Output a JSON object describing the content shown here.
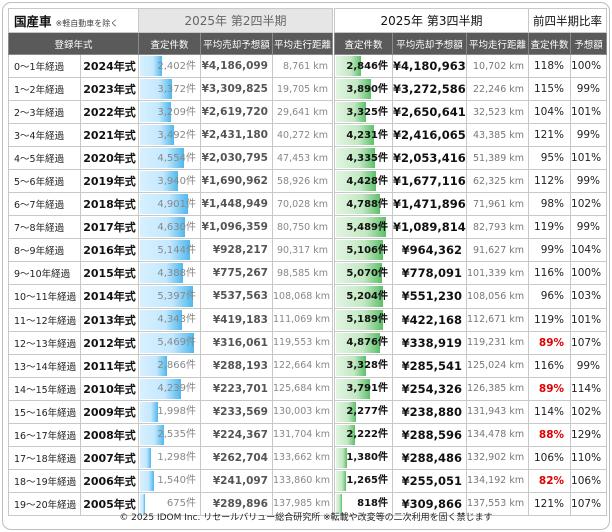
{
  "title": "国産車",
  "title_note": "※軽自動車を除く",
  "q2_label": "2025年 第2四半期",
  "q3_label": "2025年 第3四半期",
  "ratio_label": "前四半期比率",
  "columns": {
    "reg_year": "登録年式",
    "count": "査定件数",
    "avg_price": "平均売却予想額",
    "avg_distance": "平均走行距離",
    "count_ratio": "査定件数",
    "price_ratio": "予想額"
  },
  "colors": {
    "q2_bar": "#4fb8ec",
    "q3_bar": "#5cc06a",
    "alert": "#e00000",
    "header_bg": "#5a5a5a"
  },
  "rows": [
    {
      "age": "0～1年経過",
      "year": "2024年式",
      "q2_count": "2,402件",
      "q2_count_value": 2402,
      "q2_price": "¥4,186,099",
      "q2_dist": "8,761 km",
      "q3_count": "2,846件",
      "q3_count_value": 2846,
      "q3_price": "¥4,180,963",
      "q3_dist": "10,702 km",
      "count_ratio": "118%",
      "price_ratio": "100%",
      "count_ratio_alert": false
    },
    {
      "age": "1～2年経過",
      "year": "2023年式",
      "q2_count": "3,372件",
      "q2_count_value": 3372,
      "q2_price": "¥3,309,825",
      "q2_dist": "19,705 km",
      "q3_count": "3,890件",
      "q3_count_value": 3890,
      "q3_price": "¥3,272,586",
      "q3_dist": "22,246 km",
      "count_ratio": "115%",
      "price_ratio": "99%",
      "count_ratio_alert": false
    },
    {
      "age": "2～3年経過",
      "year": "2022年式",
      "q2_count": "3,209件",
      "q2_count_value": 3209,
      "q2_price": "¥2,619,720",
      "q2_dist": "29,641 km",
      "q3_count": "3,325件",
      "q3_count_value": 3325,
      "q3_price": "¥2,650,641",
      "q3_dist": "32,523 km",
      "count_ratio": "104%",
      "price_ratio": "101%",
      "count_ratio_alert": false
    },
    {
      "age": "3～4年経過",
      "year": "2021年式",
      "q2_count": "3,492件",
      "q2_count_value": 3492,
      "q2_price": "¥2,431,180",
      "q2_dist": "40,272 km",
      "q3_count": "4,231件",
      "q3_count_value": 4231,
      "q3_price": "¥2,416,065",
      "q3_dist": "43,385 km",
      "count_ratio": "121%",
      "price_ratio": "99%",
      "count_ratio_alert": false
    },
    {
      "age": "4～5年経過",
      "year": "2020年式",
      "q2_count": "4,554件",
      "q2_count_value": 4554,
      "q2_price": "¥2,030,795",
      "q2_dist": "47,453 km",
      "q3_count": "4,335件",
      "q3_count_value": 4335,
      "q3_price": "¥2,053,416",
      "q3_dist": "51,389 km",
      "count_ratio": "95%",
      "price_ratio": "101%",
      "count_ratio_alert": false
    },
    {
      "age": "5～6年経過",
      "year": "2019年式",
      "q2_count": "3,940件",
      "q2_count_value": 3940,
      "q2_price": "¥1,690,962",
      "q2_dist": "58,926 km",
      "q3_count": "4,428件",
      "q3_count_value": 4428,
      "q3_price": "¥1,677,116",
      "q3_dist": "62,325 km",
      "count_ratio": "112%",
      "price_ratio": "99%",
      "count_ratio_alert": false
    },
    {
      "age": "6～7年経過",
      "year": "2018年式",
      "q2_count": "4,901件",
      "q2_count_value": 4901,
      "q2_price": "¥1,448,949",
      "q2_dist": "70,028 km",
      "q3_count": "4,788件",
      "q3_count_value": 4788,
      "q3_price": "¥1,471,896",
      "q3_dist": "71,961 km",
      "count_ratio": "98%",
      "price_ratio": "102%",
      "count_ratio_alert": false
    },
    {
      "age": "7～8年経過",
      "year": "2017年式",
      "q2_count": "4,630件",
      "q2_count_value": 4630,
      "q2_price": "¥1,096,359",
      "q2_dist": "80,750 km",
      "q3_count": "5,489件",
      "q3_count_value": 5489,
      "q3_price": "¥1,089,814",
      "q3_dist": "82,793 km",
      "count_ratio": "119%",
      "price_ratio": "99%",
      "count_ratio_alert": false
    },
    {
      "age": "8～9年経過",
      "year": "2016年式",
      "q2_count": "5,144件",
      "q2_count_value": 5144,
      "q2_price": "¥928,217",
      "q2_dist": "90,317 km",
      "q3_count": "5,106件",
      "q3_count_value": 5106,
      "q3_price": "¥964,362",
      "q3_dist": "91,627 km",
      "count_ratio": "99%",
      "price_ratio": "104%",
      "count_ratio_alert": false
    },
    {
      "age": "9～10年経過",
      "year": "2015年式",
      "q2_count": "4,388件",
      "q2_count_value": 4388,
      "q2_price": "¥775,267",
      "q2_dist": "98,585 km",
      "q3_count": "5,070件",
      "q3_count_value": 5070,
      "q3_price": "¥778,091",
      "q3_dist": "101,339 km",
      "count_ratio": "116%",
      "price_ratio": "100%",
      "count_ratio_alert": false
    },
    {
      "age": "10～11年経過",
      "year": "2014年式",
      "q2_count": "5,397件",
      "q2_count_value": 5397,
      "q2_price": "¥537,563",
      "q2_dist": "108,068 km",
      "q3_count": "5,204件",
      "q3_count_value": 5204,
      "q3_price": "¥551,230",
      "q3_dist": "108,056 km",
      "count_ratio": "96%",
      "price_ratio": "103%",
      "count_ratio_alert": false
    },
    {
      "age": "11～12年経過",
      "year": "2013年式",
      "q2_count": "4,343件",
      "q2_count_value": 4343,
      "q2_price": "¥419,183",
      "q2_dist": "111,069 km",
      "q3_count": "5,189件",
      "q3_count_value": 5189,
      "q3_price": "¥422,168",
      "q3_dist": "112,671 km",
      "count_ratio": "119%",
      "price_ratio": "101%",
      "count_ratio_alert": false
    },
    {
      "age": "12～13年経過",
      "year": "2012年式",
      "q2_count": "5,469件",
      "q2_count_value": 5469,
      "q2_price": "¥316,061",
      "q2_dist": "119,553 km",
      "q3_count": "4,876件",
      "q3_count_value": 4876,
      "q3_price": "¥338,919",
      "q3_dist": "119,231 km",
      "count_ratio": "89%",
      "price_ratio": "107%",
      "count_ratio_alert": true
    },
    {
      "age": "13～14年経過",
      "year": "2011年式",
      "q2_count": "2,866件",
      "q2_count_value": 2866,
      "q2_price": "¥288,193",
      "q2_dist": "122,664 km",
      "q3_count": "3,328件",
      "q3_count_value": 3328,
      "q3_price": "¥285,541",
      "q3_dist": "125,024 km",
      "count_ratio": "116%",
      "price_ratio": "99%",
      "count_ratio_alert": false
    },
    {
      "age": "14～15年経過",
      "year": "2010年式",
      "q2_count": "4,239件",
      "q2_count_value": 4239,
      "q2_price": "¥223,701",
      "q2_dist": "125,684 km",
      "q3_count": "3,791件",
      "q3_count_value": 3791,
      "q3_price": "¥254,326",
      "q3_dist": "126,385 km",
      "count_ratio": "89%",
      "price_ratio": "114%",
      "count_ratio_alert": true
    },
    {
      "age": "15～16年経過",
      "year": "2009年式",
      "q2_count": "1,998件",
      "q2_count_value": 1998,
      "q2_price": "¥233,569",
      "q2_dist": "130,003 km",
      "q3_count": "2,277件",
      "q3_count_value": 2277,
      "q3_price": "¥238,880",
      "q3_dist": "131,943 km",
      "count_ratio": "114%",
      "price_ratio": "102%",
      "count_ratio_alert": false
    },
    {
      "age": "16～17年経過",
      "year": "2008年式",
      "q2_count": "2,535件",
      "q2_count_value": 2535,
      "q2_price": "¥224,367",
      "q2_dist": "131,704 km",
      "q3_count": "2,222件",
      "q3_count_value": 2222,
      "q3_price": "¥288,596",
      "q3_dist": "134,478 km",
      "count_ratio": "88%",
      "price_ratio": "129%",
      "count_ratio_alert": true
    },
    {
      "age": "17～18年経過",
      "year": "2007年式",
      "q2_count": "1,298件",
      "q2_count_value": 1298,
      "q2_price": "¥262,704",
      "q2_dist": "133,662 km",
      "q3_count": "1,380件",
      "q3_count_value": 1380,
      "q3_price": "¥288,486",
      "q3_dist": "132,902 km",
      "count_ratio": "106%",
      "price_ratio": "110%",
      "count_ratio_alert": false
    },
    {
      "age": "18～19年経過",
      "year": "2006年式",
      "q2_count": "1,540件",
      "q2_count_value": 1540,
      "q2_price": "¥241,097",
      "q2_dist": "133,860 km",
      "q3_count": "1,265件",
      "q3_count_value": 1265,
      "q3_price": "¥255,051",
      "q3_dist": "134,192 km",
      "count_ratio": "82%",
      "price_ratio": "106%",
      "count_ratio_alert": true
    },
    {
      "age": "19～20年経過",
      "year": "2005年式",
      "q2_count": "675件",
      "q2_count_value": 675,
      "q2_price": "¥289,896",
      "q2_dist": "137,985 km",
      "q3_count": "818件",
      "q3_count_value": 818,
      "q3_price": "¥309,866",
      "q3_dist": "137,553 km",
      "count_ratio": "121%",
      "price_ratio": "107%",
      "count_ratio_alert": false
    }
  ],
  "footer": "© 2025 IDOM Inc. リセールバリュー総合研究所 ※転載や改変等の二次利用を固く禁じます"
}
